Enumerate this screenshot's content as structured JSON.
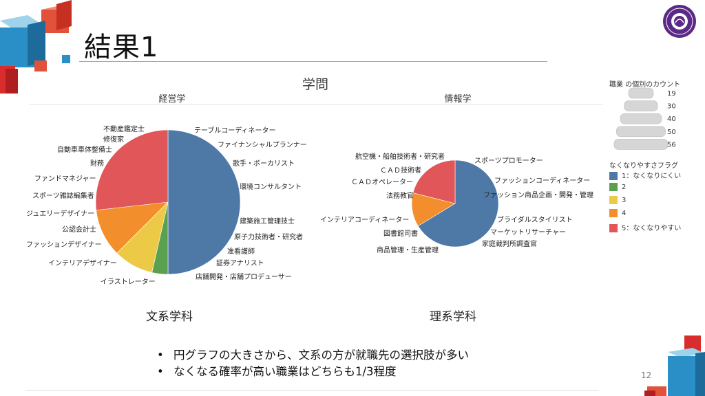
{
  "slide": {
    "title": "結果1",
    "page_number": "12",
    "bullets": [
      "円グラフの大きさから、文系の方が就職先の選択肢が多い",
      "なくなる確率が高い職業はどちらも1/3程度"
    ],
    "captions": {
      "left": "文系学科",
      "right": "理系学科"
    }
  },
  "colors": {
    "flag_1": "#4e79a7",
    "flag_2": "#59a14f",
    "flag_3": "#edc948",
    "flag_4": "#f28e2b",
    "flag_5": "#e15759",
    "logo": "#5b2a86"
  },
  "chart_data": {
    "type": "pie",
    "title": "学問",
    "size_legend": {
      "title": "職業 の個別のカウント",
      "values": [
        19,
        30,
        40,
        50,
        56
      ]
    },
    "color_legend": {
      "title": "なくなりやすさフラグ",
      "entries": [
        "1：なくなりにくい",
        "2",
        "3",
        "4",
        "5：なくなりやすい"
      ]
    },
    "pies": [
      {
        "name": "経営学",
        "count": 56,
        "slices": [
          {
            "flag": 1,
            "value": 28
          },
          {
            "flag": 2,
            "value": 2
          },
          {
            "flag": 3,
            "value": 5
          },
          {
            "flag": 4,
            "value": 6
          },
          {
            "flag": 5,
            "value": 15
          }
        ],
        "labels": [
          "テーブルコーディネーター",
          "ファイナンシャルプランナー",
          "歌手・ボーカリスト",
          "環境コンサルタント",
          "建築施工管理技士",
          "原子力技術者・研究者",
          "准看護師",
          "証券アナリスト",
          "店舗開発・店舗プロデューサー",
          "イラストレーター",
          "インテリアデザイナー",
          "ファッションデザイナー",
          "公認会計士",
          "ジュエリーデザイナー",
          "スポーツ雑誌編集者",
          "ファンドマネジャー",
          "財務",
          "自動車車体整備士",
          "修復家",
          "不動産鑑定士"
        ]
      },
      {
        "name": "情報学",
        "count": 19,
        "slices": [
          {
            "flag": 1,
            "value": 12.6
          },
          {
            "flag": 4,
            "value": 2.4
          },
          {
            "flag": 5,
            "value": 4
          }
        ],
        "labels": [
          "スポーツプロモーター",
          "ファッションコーディネーター",
          "ファッション商品企画・開発・管理",
          "ブライダルスタイリスト",
          "マーケットリサーチャー",
          "家庭裁判所調査官",
          "商品管理・生産管理",
          "図書館司書",
          "インテリアコーディネーター",
          "法務教官",
          "ＣＡＤオペレーター",
          "ＣＡＤ技術者",
          "航空機・船舶技術者・研究者"
        ]
      }
    ]
  }
}
